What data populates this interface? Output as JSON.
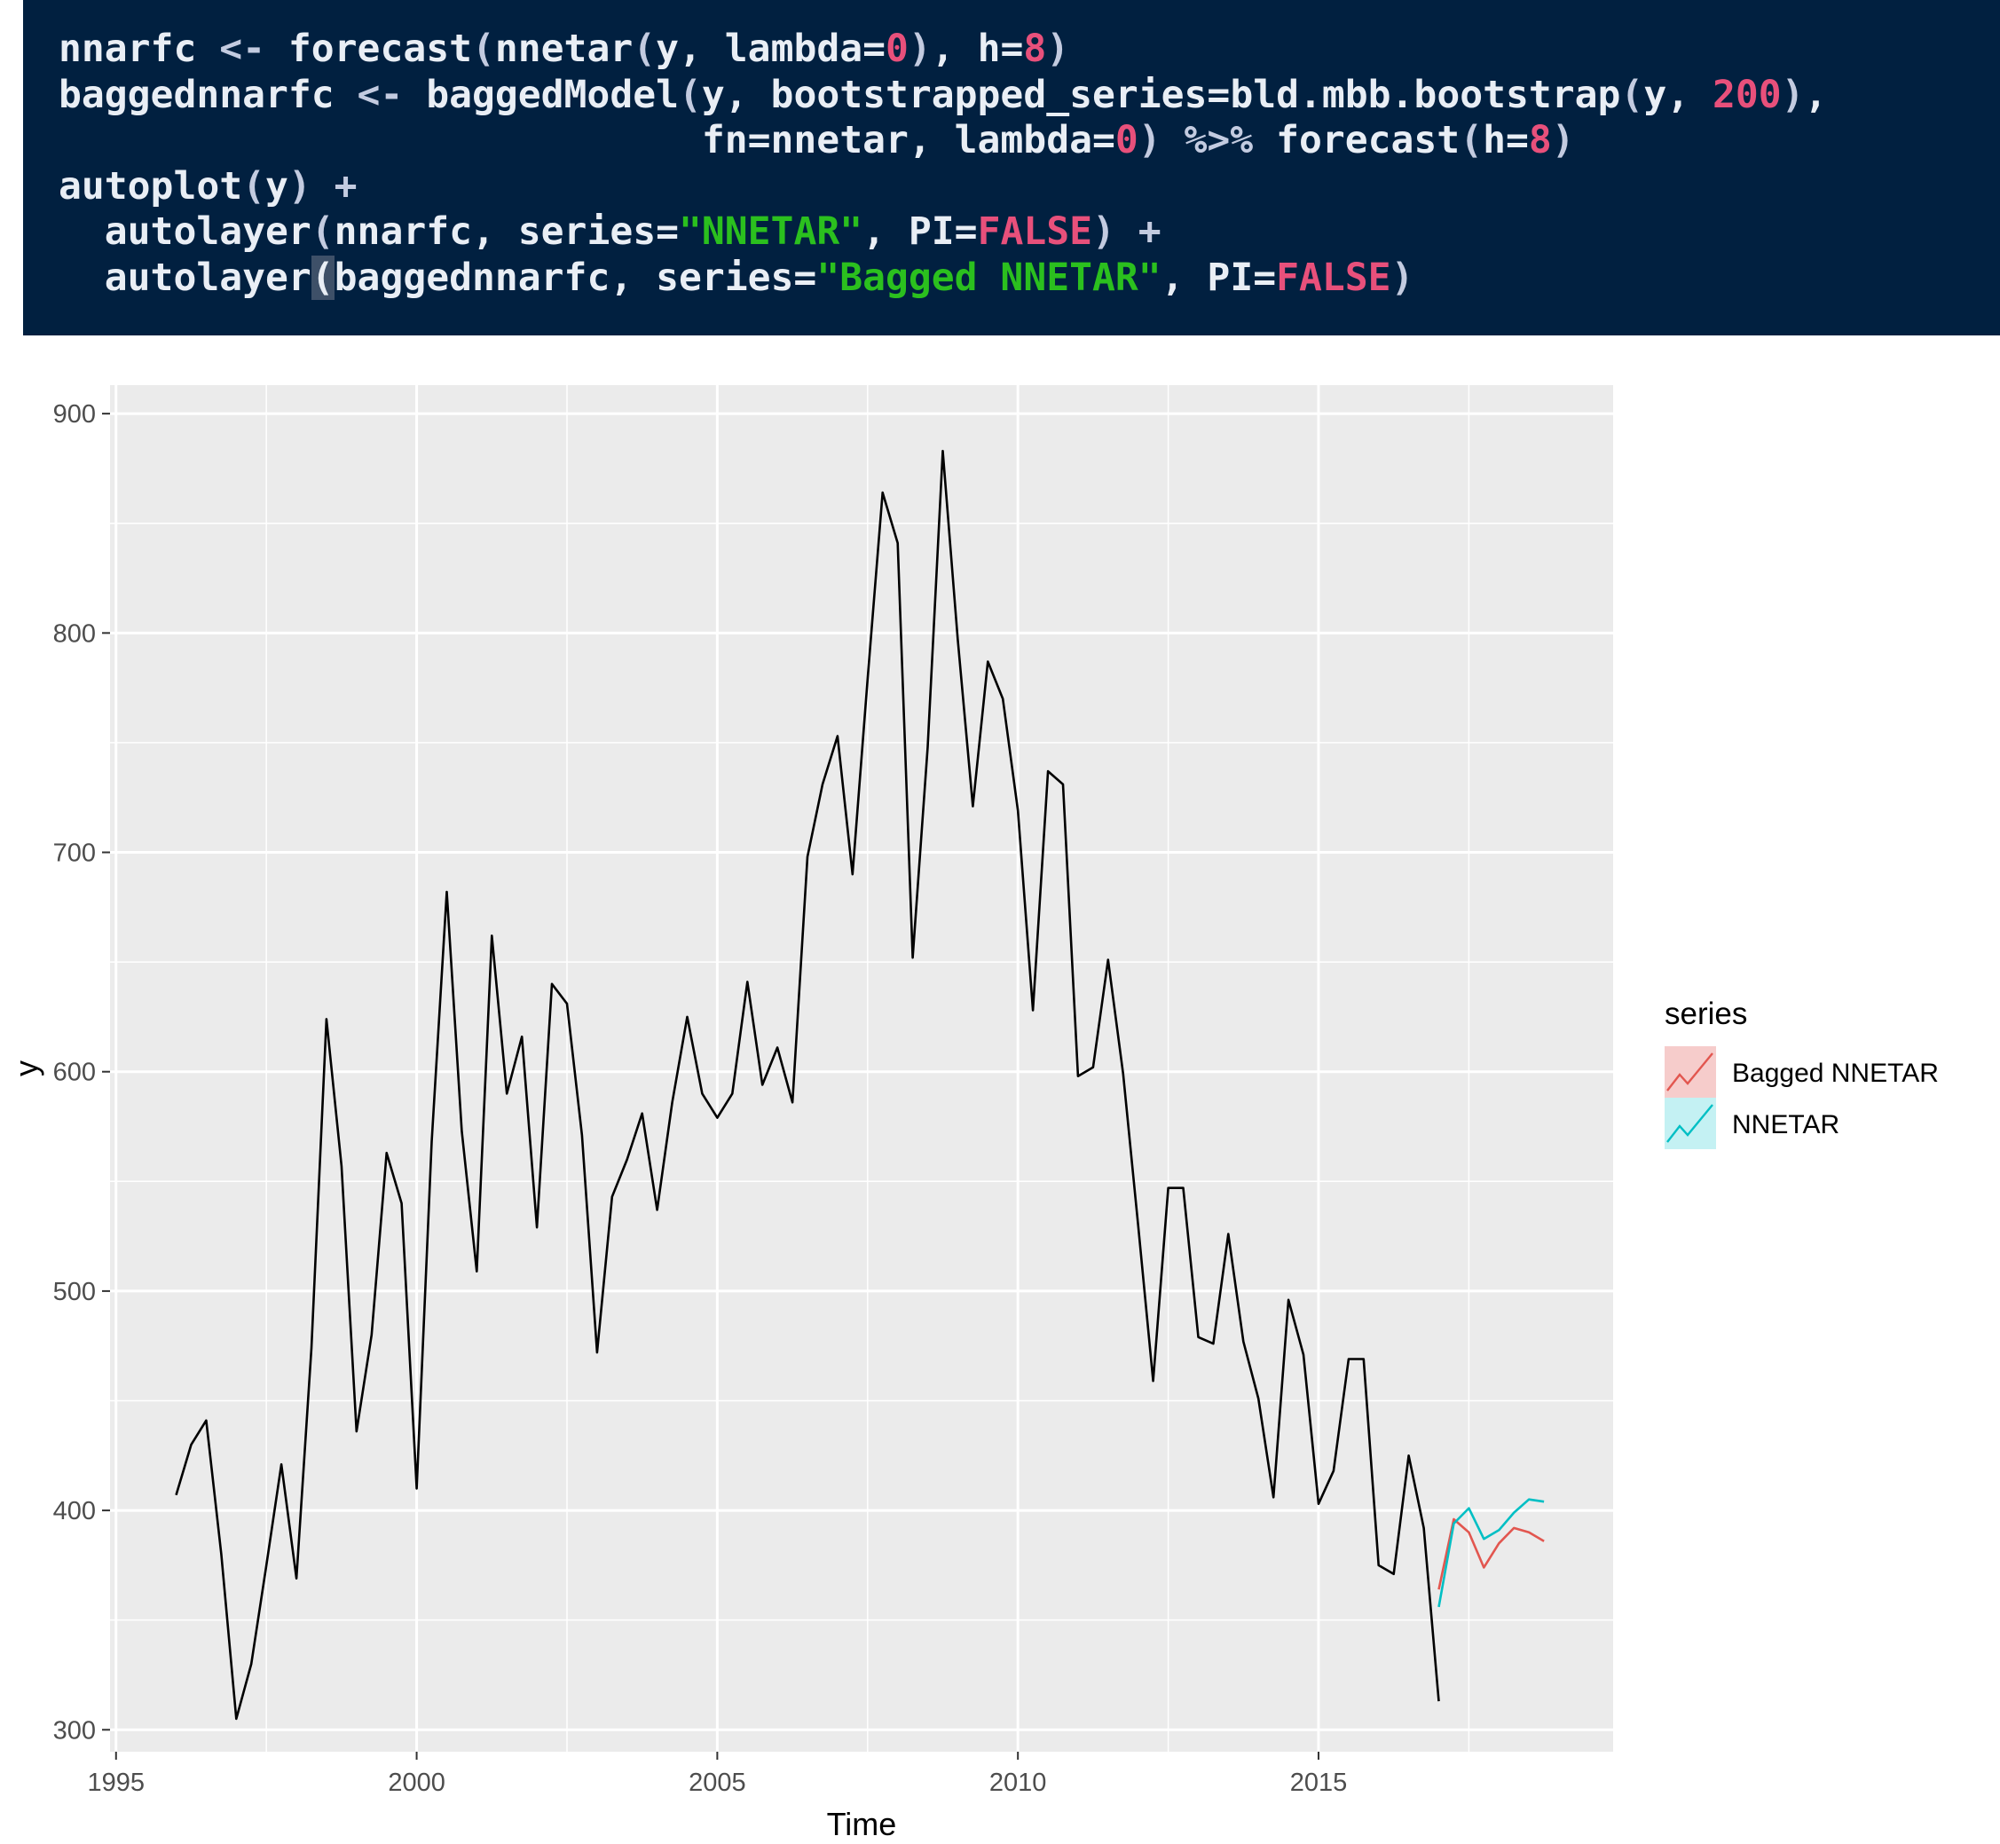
{
  "code": {
    "lines": [
      [
        {
          "t": "nnarfc "
        },
        {
          "t": "<-",
          "c": "op"
        },
        {
          "t": " forecast"
        },
        {
          "t": "(",
          "c": "paren"
        },
        {
          "t": "nnetar"
        },
        {
          "t": "(",
          "c": "paren"
        },
        {
          "t": "y, lambda="
        },
        {
          "t": "0",
          "c": "num"
        },
        {
          "t": ")",
          "c": "paren"
        },
        {
          "t": ", h="
        },
        {
          "t": "8",
          "c": "num"
        },
        {
          "t": ")",
          "c": "paren"
        }
      ],
      [
        {
          "t": "baggednnarfc "
        },
        {
          "t": "<-",
          "c": "op"
        },
        {
          "t": " baggedModel"
        },
        {
          "t": "(",
          "c": "paren"
        },
        {
          "t": "y, bootstrapped_series=bld.mbb.bootstrap"
        },
        {
          "t": "(",
          "c": "paren"
        },
        {
          "t": "y, "
        },
        {
          "t": "200",
          "c": "num"
        },
        {
          "t": ")",
          "c": "paren"
        },
        {
          "t": ","
        }
      ],
      [
        {
          "t": "                            fn=nnetar, lambda="
        },
        {
          "t": "0",
          "c": "num"
        },
        {
          "t": ")",
          "c": "paren"
        },
        {
          "t": " "
        },
        {
          "t": "%>%",
          "c": "op"
        },
        {
          "t": " forecast"
        },
        {
          "t": "(",
          "c": "paren"
        },
        {
          "t": "h="
        },
        {
          "t": "8",
          "c": "num"
        },
        {
          "t": ")",
          "c": "paren"
        }
      ],
      [
        {
          "t": "autoplot"
        },
        {
          "t": "(",
          "c": "paren"
        },
        {
          "t": "y"
        },
        {
          "t": ")",
          "c": "paren"
        },
        {
          "t": " "
        },
        {
          "t": "+",
          "c": "op"
        }
      ],
      [
        {
          "t": "  autolayer"
        },
        {
          "t": "(",
          "c": "paren"
        },
        {
          "t": "nnarfc, series="
        },
        {
          "t": "\"NNETAR\"",
          "c": "str"
        },
        {
          "t": ", PI="
        },
        {
          "t": "FALSE",
          "c": "num"
        },
        {
          "t": ")",
          "c": "paren"
        },
        {
          "t": " "
        },
        {
          "t": "+",
          "c": "op"
        }
      ],
      [
        {
          "t": "  autolayer"
        },
        {
          "t": "(",
          "c": "cursor"
        },
        {
          "t": "baggednnarfc, series="
        },
        {
          "t": "\"Bagged NNETAR\"",
          "c": "str"
        },
        {
          "t": ", PI="
        },
        {
          "t": "FALSE",
          "c": "num"
        },
        {
          "t": ")",
          "c": "paren"
        }
      ]
    ]
  },
  "chart_data": {
    "type": "line",
    "xlabel": "Time",
    "ylabel": "y",
    "xlim": [
      1994.9,
      2019.9
    ],
    "ylim": [
      290,
      913
    ],
    "x_ticks": [
      1995,
      2000,
      2005,
      2010,
      2015
    ],
    "y_ticks": [
      300,
      400,
      500,
      600,
      700,
      800,
      900
    ],
    "grid": true,
    "panel_background": "#ebebeb",
    "legend_position": "right",
    "legend_title": "series",
    "series": [
      {
        "name": "",
        "color": "#000000",
        "x_start": 1996.0,
        "step": 0.25,
        "values": [
          407,
          430,
          441,
          380,
          305,
          330,
          375,
          421,
          369,
          474,
          624,
          557,
          436,
          480,
          563,
          540,
          410,
          568,
          682,
          573,
          509,
          662,
          590,
          616,
          529,
          640,
          631,
          571,
          472,
          543,
          560,
          581,
          537,
          586,
          625,
          590,
          579,
          590,
          641,
          594,
          611,
          586,
          698,
          731,
          753,
          690,
          779,
          864,
          841,
          652,
          748,
          883,
          797,
          721,
          787,
          770,
          719,
          628,
          737,
          731,
          598,
          602,
          651,
          599,
          530,
          459,
          547,
          547,
          479,
          476,
          526,
          477,
          451,
          406,
          496,
          471,
          403,
          418,
          469,
          469,
          375,
          371,
          425,
          392,
          313
        ]
      },
      {
        "name": "Bagged NNETAR",
        "color": "#e2564f",
        "x": [
          2017.0,
          2017.25,
          2017.5,
          2017.75,
          2018.0,
          2018.25,
          2018.5,
          2018.75
        ],
        "values": [
          364,
          396,
          390,
          374,
          385,
          392,
          390,
          386
        ]
      },
      {
        "name": "NNETAR",
        "color": "#00bfc4",
        "x": [
          2017.0,
          2017.25,
          2017.5,
          2017.75,
          2018.0,
          2018.25,
          2018.5,
          2018.75
        ],
        "values": [
          356,
          394,
          401,
          387,
          391,
          399,
          405,
          404
        ]
      }
    ],
    "legend_fill": {
      "Bagged NNETAR": "#f6cccb",
      "NNETAR": "#c4f1f3"
    }
  }
}
